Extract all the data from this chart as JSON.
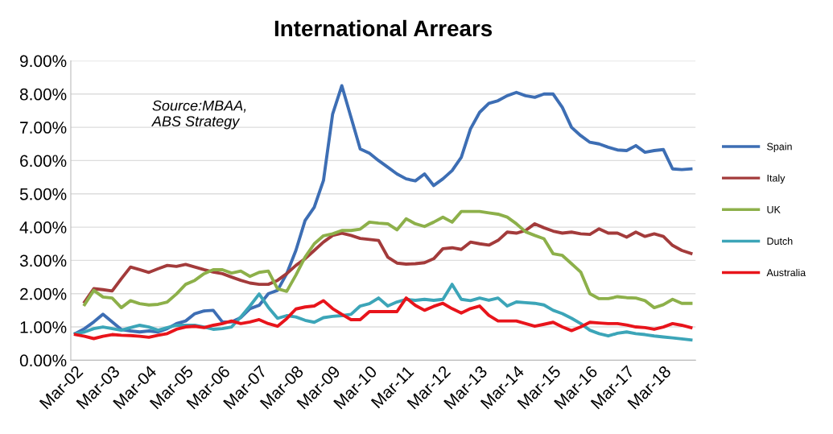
{
  "chart_data": {
    "type": "line",
    "title": "International Arrears",
    "categories": [
      "Mar-02",
      null,
      null,
      null,
      "Mar-03",
      null,
      null,
      null,
      "Mar-04",
      null,
      null,
      null,
      "Mar-05",
      null,
      null,
      null,
      "Mar-06",
      null,
      null,
      null,
      "Mar-07",
      null,
      null,
      null,
      "Mar-08",
      null,
      null,
      null,
      "Mar-09",
      null,
      null,
      null,
      "Mar-10",
      null,
      null,
      null,
      "Mar-11",
      null,
      null,
      null,
      "Mar-12",
      null,
      null,
      null,
      "Mar-13",
      null,
      null,
      null,
      "Mar-14",
      null,
      null,
      null,
      "Mar-15",
      null,
      null,
      null,
      "Mar-16",
      null,
      null,
      null,
      "Mar-17",
      null,
      null,
      null,
      "Mar-18",
      null,
      null,
      null
    ],
    "series": [
      {
        "name": "Spain",
        "color": "#3d6eb4",
        "values": [
          0.8,
          0.95,
          1.15,
          1.38,
          1.15,
          0.92,
          0.88,
          0.85,
          0.88,
          0.85,
          0.95,
          1.1,
          1.18,
          1.4,
          1.48,
          1.5,
          1.15,
          1.15,
          1.28,
          1.55,
          1.65,
          2.0,
          2.1,
          2.6,
          3.3,
          4.2,
          4.6,
          5.4,
          7.4,
          8.25,
          7.3,
          6.35,
          6.22,
          6.0,
          5.8,
          5.6,
          5.45,
          5.39,
          5.6,
          5.25,
          5.45,
          5.7,
          6.1,
          6.95,
          7.45,
          7.72,
          7.8,
          7.95,
          8.05,
          7.95,
          7.9,
          8.0,
          8.0,
          7.6,
          7.0,
          6.75,
          6.55,
          6.5,
          6.4,
          6.32,
          6.3,
          6.45,
          6.25,
          6.3,
          6.33,
          5.75,
          5.73,
          5.75
        ]
      },
      {
        "name": "Italy",
        "color": "#a33b3b",
        "values": [
          null,
          1.75,
          2.15,
          2.12,
          2.08,
          2.45,
          2.8,
          2.72,
          2.64,
          2.75,
          2.85,
          2.82,
          2.88,
          2.8,
          2.72,
          2.65,
          2.6,
          2.5,
          2.4,
          2.32,
          2.28,
          2.28,
          2.4,
          2.6,
          2.85,
          3.05,
          3.3,
          3.55,
          3.75,
          3.82,
          3.75,
          3.66,
          3.63,
          3.6,
          3.1,
          2.92,
          2.89,
          2.9,
          2.93,
          3.05,
          3.35,
          3.38,
          3.33,
          3.55,
          3.5,
          3.46,
          3.6,
          3.85,
          3.82,
          3.9,
          4.1,
          3.98,
          3.88,
          3.82,
          3.85,
          3.8,
          3.78,
          3.95,
          3.82,
          3.82,
          3.7,
          3.85,
          3.72,
          3.8,
          3.72,
          3.45,
          3.3,
          3.21
        ]
      },
      {
        "name": "UK",
        "color": "#8db04a",
        "values": [
          null,
          1.67,
          2.1,
          1.9,
          1.87,
          1.58,
          1.79,
          1.7,
          1.66,
          1.68,
          1.75,
          1.99,
          2.28,
          2.4,
          2.6,
          2.72,
          2.72,
          2.62,
          2.68,
          2.52,
          2.64,
          2.68,
          2.15,
          2.07,
          2.56,
          3.1,
          3.5,
          3.74,
          3.8,
          3.9,
          3.9,
          3.94,
          4.15,
          4.12,
          4.1,
          3.92,
          4.25,
          4.1,
          4.02,
          4.15,
          4.3,
          4.15,
          4.47,
          4.47,
          4.47,
          4.43,
          4.39,
          4.3,
          4.1,
          3.86,
          3.75,
          3.65,
          3.2,
          3.15,
          2.9,
          2.65,
          2.0,
          1.85,
          1.85,
          1.91,
          1.88,
          1.87,
          1.79,
          1.58,
          1.67,
          1.83,
          1.71,
          1.71
        ]
      },
      {
        "name": "Dutch",
        "color": "#3ca5b8",
        "values": [
          0.8,
          0.85,
          0.95,
          1.0,
          0.95,
          0.9,
          0.98,
          1.05,
          1.0,
          0.9,
          0.98,
          1.05,
          1.05,
          1.05,
          1.0,
          0.93,
          0.95,
          1.0,
          1.3,
          1.63,
          1.99,
          1.59,
          1.26,
          1.34,
          1.3,
          1.2,
          1.14,
          1.28,
          1.32,
          1.34,
          1.38,
          1.63,
          1.7,
          1.87,
          1.63,
          1.75,
          1.83,
          1.8,
          1.83,
          1.8,
          1.83,
          2.28,
          1.83,
          1.79,
          1.87,
          1.8,
          1.87,
          1.63,
          1.75,
          1.73,
          1.71,
          1.66,
          1.5,
          1.4,
          1.26,
          1.1,
          0.9,
          0.8,
          0.73,
          0.81,
          0.85,
          0.8,
          0.77,
          0.73,
          0.7,
          0.67,
          0.64,
          0.61
        ]
      },
      {
        "name": "Australia",
        "color": "#e8141b",
        "values": [
          0.77,
          0.72,
          0.65,
          0.72,
          0.77,
          0.75,
          0.74,
          0.72,
          0.69,
          0.75,
          0.8,
          0.93,
          1.0,
          1.02,
          0.98,
          1.05,
          1.1,
          1.18,
          1.1,
          1.15,
          1.22,
          1.1,
          1.02,
          1.25,
          1.54,
          1.6,
          1.63,
          1.79,
          1.55,
          1.38,
          1.22,
          1.22,
          1.46,
          1.46,
          1.46,
          1.46,
          1.87,
          1.65,
          1.5,
          1.62,
          1.71,
          1.55,
          1.42,
          1.55,
          1.63,
          1.35,
          1.18,
          1.18,
          1.18,
          1.1,
          1.02,
          1.08,
          1.14,
          1.0,
          0.89,
          1.0,
          1.14,
          1.12,
          1.1,
          1.1,
          1.06,
          1.0,
          0.98,
          0.93,
          1.0,
          1.1,
          1.05,
          0.98
        ]
      }
    ],
    "ylim": [
      0,
      9
    ],
    "yticks": [
      {
        "value": 0,
        "label": "0.00%"
      },
      {
        "value": 1,
        "label": "1.00%"
      },
      {
        "value": 2,
        "label": "2.00%"
      },
      {
        "value": 3,
        "label": "3.00%"
      },
      {
        "value": 4,
        "label": "4.00%"
      },
      {
        "value": 5,
        "label": "5.00%"
      },
      {
        "value": 6,
        "label": "6.00%"
      },
      {
        "value": 7,
        "label": "7.00%"
      },
      {
        "value": 8,
        "label": "8.00%"
      },
      {
        "value": 9,
        "label": "9.00%"
      }
    ],
    "grid": "y",
    "legend": "right",
    "marker": "none",
    "line_style": "solid",
    "annotations": [
      "Source:MBAA,\nABS Strategy"
    ]
  }
}
